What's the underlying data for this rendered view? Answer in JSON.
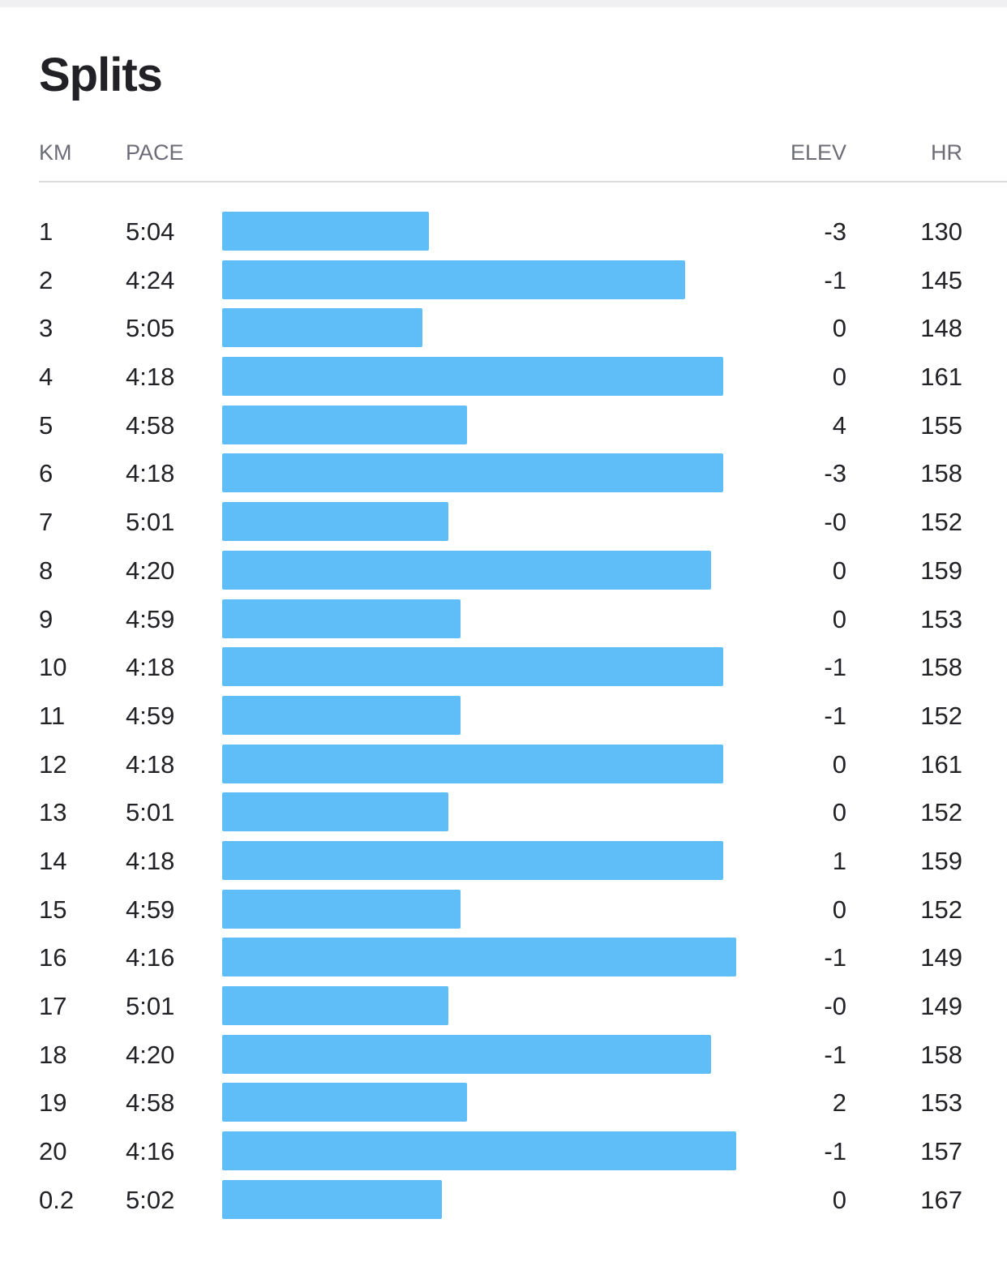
{
  "title": "Splits",
  "headers": {
    "km": "KM",
    "pace": "PACE",
    "elev": "ELEV",
    "hr": "HR"
  },
  "colors": {
    "bar": "#5fbef7",
    "text": "#222226",
    "header_text": "#6d6d78"
  },
  "splits": [
    {
      "km": "1",
      "pace": "5:04",
      "elev": "-3",
      "hr": "130"
    },
    {
      "km": "2",
      "pace": "4:24",
      "elev": "-1",
      "hr": "145"
    },
    {
      "km": "3",
      "pace": "5:05",
      "elev": "0",
      "hr": "148"
    },
    {
      "km": "4",
      "pace": "4:18",
      "elev": "0",
      "hr": "161"
    },
    {
      "km": "5",
      "pace": "4:58",
      "elev": "4",
      "hr": "155"
    },
    {
      "km": "6",
      "pace": "4:18",
      "elev": "-3",
      "hr": "158"
    },
    {
      "km": "7",
      "pace": "5:01",
      "elev": "-0",
      "hr": "152"
    },
    {
      "km": "8",
      "pace": "4:20",
      "elev": "0",
      "hr": "159"
    },
    {
      "km": "9",
      "pace": "4:59",
      "elev": "0",
      "hr": "153"
    },
    {
      "km": "10",
      "pace": "4:18",
      "elev": "-1",
      "hr": "158"
    },
    {
      "km": "11",
      "pace": "4:59",
      "elev": "-1",
      "hr": "152"
    },
    {
      "km": "12",
      "pace": "4:18",
      "elev": "0",
      "hr": "161"
    },
    {
      "km": "13",
      "pace": "5:01",
      "elev": "0",
      "hr": "152"
    },
    {
      "km": "14",
      "pace": "4:18",
      "elev": "1",
      "hr": "159"
    },
    {
      "km": "15",
      "pace": "4:59",
      "elev": "0",
      "hr": "152"
    },
    {
      "km": "16",
      "pace": "4:16",
      "elev": "-1",
      "hr": "149"
    },
    {
      "km": "17",
      "pace": "5:01",
      "elev": "-0",
      "hr": "149"
    },
    {
      "km": "18",
      "pace": "4:20",
      "elev": "-1",
      "hr": "158"
    },
    {
      "km": "19",
      "pace": "4:58",
      "elev": "2",
      "hr": "153"
    },
    {
      "km": "20",
      "pace": "4:16",
      "elev": "-1",
      "hr": "157"
    },
    {
      "km": "0.2",
      "pace": "5:02",
      "elev": "0",
      "hr": "167"
    }
  ]
}
